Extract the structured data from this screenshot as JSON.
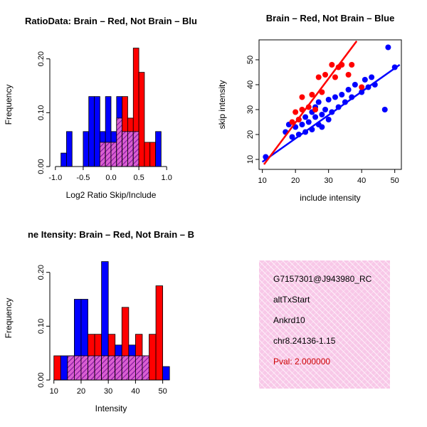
{
  "colors": {
    "red": "#ff0000",
    "blue": "#0000ff",
    "overlap_fill": "#d95fd0",
    "overlap_line": "#7d0f9c",
    "pval_text": "#cc0000",
    "infobox_bg": "#f8c8e8",
    "axis": "#000000",
    "background": "#ffffff"
  },
  "panels": {
    "infobox": {
      "lines": [
        "G7157301@J943980_RC",
        "altTxStart",
        "Ankrd10",
        "chr8.24136-1.15"
      ],
      "pval_line": "Pval: 2.000000"
    }
  },
  "chart_data": [
    {
      "id": "ratio_hist",
      "type": "bar",
      "title": "RatioData: Brain – Red, Not Brain – Blu",
      "xlabel": "Log2 Ratio Skip/Include",
      "ylabel": "Frequency",
      "grid": false,
      "legend": false,
      "xlim": [
        -1.1,
        1.1
      ],
      "ylim": [
        0,
        0.23
      ],
      "xticks": [
        -1.0,
        -0.5,
        0.0,
        0.5,
        1.0
      ],
      "xtick_labels": [
        "-1.0",
        "-0.5",
        "0.0",
        "0.5",
        "1.0"
      ],
      "yticks": [
        0,
        0.1,
        0.2
      ],
      "ytick_labels": [
        "0.00",
        "0.10",
        "0.20"
      ],
      "bin_width": 0.1,
      "bin_starts": [
        -1.0,
        -0.9,
        -0.8,
        -0.7,
        -0.6,
        -0.5,
        -0.4,
        -0.3,
        -0.2,
        -0.1,
        0.0,
        0.1,
        0.2,
        0.3,
        0.4,
        0.5,
        0.6,
        0.7,
        0.8,
        0.9
      ],
      "series": [
        {
          "name": "Not Brain",
          "color_key": "blue",
          "values": [
            0,
            0.025,
            0.065,
            0,
            0,
            0.065,
            0.13,
            0.13,
            0.065,
            0.13,
            0.065,
            0.13,
            0.065,
            0.065,
            0.065,
            0,
            0,
            0,
            0.065,
            0
          ]
        },
        {
          "name": "Brain",
          "color_key": "red",
          "values": [
            0,
            0,
            0,
            0,
            0,
            0,
            0,
            0,
            0.045,
            0.045,
            0.045,
            0.09,
            0.13,
            0.09,
            0.22,
            0.175,
            0.045,
            0.045,
            0,
            0
          ]
        }
      ],
      "overlap": "purple hatched bars where red and blue histograms overlap (minimum of the two series)"
    },
    {
      "id": "scatter",
      "type": "scatter",
      "title": "Brain – Red, Not Brain – Blue",
      "xlabel": "include intensity",
      "ylabel": "skip intensity",
      "grid": false,
      "legend": false,
      "xlim": [
        9,
        52
      ],
      "ylim": [
        6,
        58
      ],
      "xticks": [
        10,
        20,
        30,
        40,
        50
      ],
      "xtick_labels": [
        "10",
        "20",
        "30",
        "40",
        "50"
      ],
      "yticks": [
        10,
        20,
        30,
        40,
        50
      ],
      "ytick_labels": [
        "10",
        "20",
        "30",
        "40",
        "50"
      ],
      "series": [
        {
          "name": "Not Brain",
          "color_key": "blue",
          "points": [
            [
              11,
              11
            ],
            [
              17,
              21
            ],
            [
              18,
              24
            ],
            [
              19,
              19
            ],
            [
              20,
              23
            ],
            [
              21,
              20
            ],
            [
              21,
              26
            ],
            [
              22,
              24
            ],
            [
              23,
              21
            ],
            [
              23,
              27
            ],
            [
              24,
              25
            ],
            [
              25,
              22
            ],
            [
              25,
              29
            ],
            [
              26,
              27
            ],
            [
              26,
              31
            ],
            [
              27,
              24
            ],
            [
              27,
              33
            ],
            [
              28,
              23
            ],
            [
              28,
              28
            ],
            [
              29,
              30
            ],
            [
              30,
              26
            ],
            [
              30,
              34
            ],
            [
              31,
              29
            ],
            [
              32,
              35
            ],
            [
              33,
              31
            ],
            [
              34,
              36
            ],
            [
              35,
              33
            ],
            [
              36,
              38
            ],
            [
              37,
              35
            ],
            [
              38,
              40
            ],
            [
              40,
              37
            ],
            [
              41,
              42
            ],
            [
              42,
              39
            ],
            [
              43,
              43
            ],
            [
              44,
              40
            ],
            [
              47,
              30
            ],
            [
              48,
              55
            ],
            [
              50,
              47
            ]
          ],
          "fit_line": [
            [
              10,
              9
            ],
            [
              51.5,
              48
            ]
          ]
        },
        {
          "name": "Brain",
          "color_key": "red",
          "points": [
            [
              19,
              25
            ],
            [
              20,
              29
            ],
            [
              21,
              26
            ],
            [
              22,
              30
            ],
            [
              22,
              35
            ],
            [
              24,
              31
            ],
            [
              25,
              36
            ],
            [
              26,
              30
            ],
            [
              27,
              43
            ],
            [
              28,
              37
            ],
            [
              29,
              44
            ],
            [
              31,
              48
            ],
            [
              32,
              43
            ],
            [
              33,
              47
            ],
            [
              34,
              48
            ],
            [
              36,
              44
            ],
            [
              37,
              48
            ],
            [
              40,
              39
            ]
          ],
          "fit_line": [
            [
              10.5,
              8
            ],
            [
              38.5,
              57.5
            ]
          ]
        }
      ]
    },
    {
      "id": "intensity_hist",
      "type": "bar",
      "title": "ne Itensity: Brain – Red, Not Brain – B",
      "xlabel": "Intensity",
      "ylabel": "Frequency",
      "grid": false,
      "legend": false,
      "xlim": [
        8.5,
        53.5
      ],
      "ylim": [
        0,
        0.23
      ],
      "xticks": [
        10,
        20,
        30,
        40,
        50
      ],
      "xtick_labels": [
        "10",
        "20",
        "30",
        "40",
        "50"
      ],
      "yticks": [
        0,
        0.1,
        0.2
      ],
      "ytick_labels": [
        "0.00",
        "0.10",
        "0.20"
      ],
      "bin_width": 2.5,
      "bin_starts": [
        10,
        12.5,
        15,
        17.5,
        20,
        22.5,
        25,
        27.5,
        30,
        32.5,
        35,
        37.5,
        40,
        42.5,
        45,
        47.5,
        50
      ],
      "series": [
        {
          "name": "Not Brain",
          "color_key": "blue",
          "values": [
            0,
            0.045,
            0.045,
            0.15,
            0.15,
            0.045,
            0.045,
            0.22,
            0.045,
            0.065,
            0.045,
            0.065,
            0.045,
            0.045,
            0,
            0,
            0.025
          ]
        },
        {
          "name": "Brain",
          "color_key": "red",
          "values": [
            0.045,
            0,
            0.045,
            0.045,
            0.045,
            0.085,
            0.085,
            0.045,
            0.085,
            0.045,
            0.135,
            0.045,
            0.085,
            0.045,
            0.085,
            0.175,
            0
          ]
        }
      ],
      "overlap": "purple hatched bars where red and blue histograms overlap (minimum of the two series)"
    }
  ]
}
